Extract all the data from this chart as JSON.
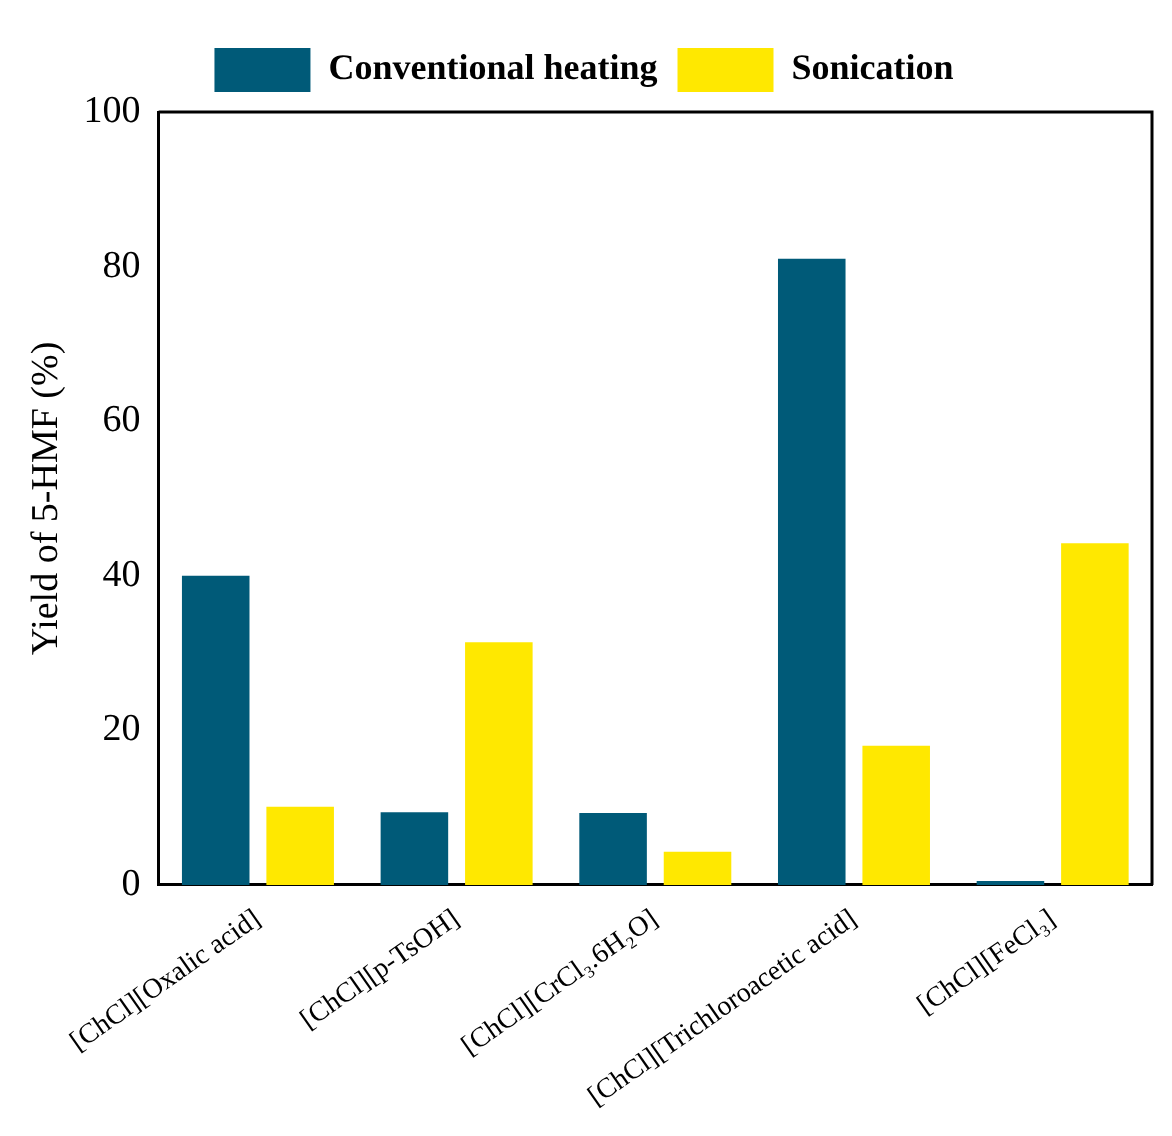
{
  "chart_data": {
    "type": "bar",
    "ylabel": "Yield of 5-HMF (%)",
    "categories": [
      "[ChCl][Oxalic acid]",
      "[ChCl][p-TsOH]",
      "[ChCl][CrCl₃.6H₂O]",
      "[ChCl][Trichloroacetic acid]",
      "[ChCl][FeCl₃]"
    ],
    "series": [
      {
        "name": "Conventional heating",
        "color": "#005a78",
        "values": [
          40,
          9.4,
          9.3,
          81,
          0.5
        ]
      },
      {
        "name": "Sonication",
        "color": "#ffe800",
        "values": [
          10.1,
          31.4,
          4.3,
          18,
          44.2
        ]
      }
    ],
    "ylim": [
      0,
      100
    ],
    "yticks": [
      0,
      20,
      40,
      60,
      80,
      100
    ],
    "grid": false,
    "legend": "top"
  }
}
